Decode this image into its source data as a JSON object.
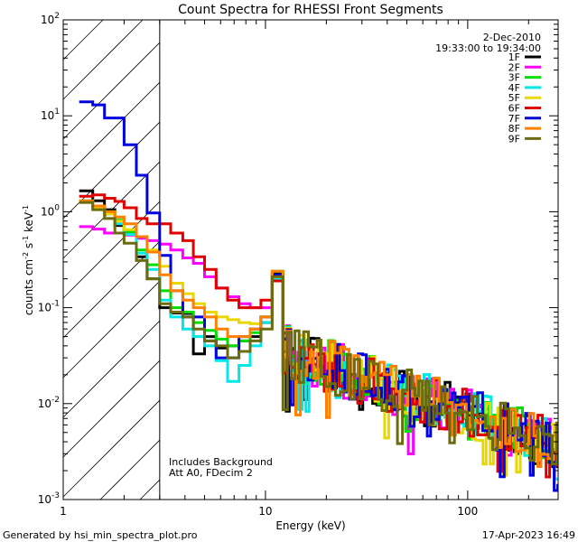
{
  "chart_data": {
    "type": "line",
    "title": "Count Spectra for RHESSI Front Segments",
    "xlabel": "Energy (keV)",
    "ylabel": {
      "base": "counts cm",
      "sup1": "-2",
      "mid1": " s",
      "sup2": "-1",
      "mid2": " keV",
      "sup3": "-1"
    },
    "xscale": "log",
    "yscale": "log",
    "xlim": [
      1,
      280
    ],
    "ylim": [
      0.001,
      100
    ],
    "x_ticks": [
      {
        "value": 1,
        "label": "1"
      },
      {
        "value": 10,
        "label": "10"
      },
      {
        "value": 100,
        "label": "100"
      }
    ],
    "y_ticks": [
      {
        "value": 0.001,
        "base": "10",
        "exp": "-3"
      },
      {
        "value": 0.01,
        "base": "10",
        "exp": "-2"
      },
      {
        "value": 0.1,
        "base": "10",
        "exp": "-1"
      },
      {
        "value": 1,
        "base": "10",
        "exp": "0"
      },
      {
        "value": 10,
        "base": "10",
        "exp": "1"
      },
      {
        "value": 100,
        "base": "10",
        "exp": "2"
      }
    ],
    "hatched_region": {
      "x_from": 1,
      "x_to": 3
    },
    "date_label": "2-Dec-2010",
    "time_label": "19:33:00 to 19:34:00",
    "notes": [
      "Includes Background",
      "Att A0, FDecim 2"
    ],
    "series": [
      {
        "name": "1F",
        "color": "#000000"
      },
      {
        "name": "2F",
        "color": "#ff00ff"
      },
      {
        "name": "3F",
        "color": "#00e000"
      },
      {
        "name": "4F",
        "color": "#00e8e8"
      },
      {
        "name": "5F",
        "color": "#e8d800"
      },
      {
        "name": "6F",
        "color": "#e00000"
      },
      {
        "name": "7F",
        "color": "#0000e0"
      },
      {
        "name": "8F",
        "color": "#ff8000"
      },
      {
        "name": "9F",
        "color": "#6b6b10"
      }
    ],
    "low_energy_bins": [
      1.2,
      1.4,
      1.6,
      1.8,
      2.0,
      2.3,
      2.6,
      3.0,
      3.4,
      3.9,
      4.4,
      5.0,
      5.7,
      6.5,
      7.4,
      8.4,
      9.5,
      10.8,
      12.2
    ],
    "low_energy_values": {
      "1F": [
        1.65,
        1.3,
        1.05,
        0.72,
        0.62,
        0.34,
        0.2,
        0.1,
        0.088,
        0.087,
        0.033,
        0.05,
        0.038,
        0.04,
        0.045,
        0.05,
        0.07,
        0.23,
        0.025
      ],
      "2F": [
        0.7,
        0.66,
        0.6,
        0.6,
        0.57,
        0.53,
        0.5,
        0.46,
        0.4,
        0.33,
        0.29,
        0.21,
        0.16,
        0.13,
        0.11,
        0.1,
        0.1,
        0.2,
        0.04
      ],
      "3F": [
        1.3,
        1.15,
        1.0,
        0.82,
        0.62,
        0.4,
        0.28,
        0.15,
        0.1,
        0.09,
        0.07,
        0.058,
        0.047,
        0.04,
        0.045,
        0.055,
        0.08,
        0.24,
        0.03
      ],
      "4F": [
        1.3,
        1.12,
        0.95,
        0.75,
        0.58,
        0.37,
        0.25,
        0.12,
        0.08,
        0.06,
        0.05,
        0.04,
        0.028,
        0.017,
        0.025,
        0.04,
        0.07,
        0.2,
        0.03
      ],
      "5F": [
        1.25,
        1.1,
        0.95,
        0.8,
        0.65,
        0.55,
        0.4,
        0.27,
        0.18,
        0.14,
        0.11,
        0.09,
        0.08,
        0.075,
        0.07,
        0.068,
        0.08,
        0.21,
        0.035
      ],
      "6F": [
        1.45,
        1.5,
        1.38,
        1.28,
        1.1,
        0.85,
        0.75,
        0.75,
        0.6,
        0.5,
        0.34,
        0.25,
        0.16,
        0.12,
        0.1,
        0.1,
        0.12,
        0.19,
        0.06
      ],
      "7F": [
        14.0,
        13.0,
        9.5,
        9.5,
        5.0,
        2.4,
        0.97,
        0.35,
        0.15,
        0.08,
        0.08,
        0.045,
        0.03,
        0.03,
        0.05,
        0.06,
        0.08,
        0.22,
        0.03
      ],
      "8F": [
        1.3,
        1.15,
        1.0,
        0.88,
        0.75,
        0.55,
        0.38,
        0.22,
        0.15,
        0.12,
        0.1,
        0.08,
        0.06,
        0.05,
        0.05,
        0.06,
        0.08,
        0.24,
        0.035
      ],
      "9F": [
        1.25,
        1.05,
        0.85,
        0.6,
        0.47,
        0.31,
        0.2,
        0.11,
        0.09,
        0.08,
        0.06,
        0.045,
        0.04,
        0.03,
        0.035,
        0.045,
        0.06,
        0.21,
        0.025
      ]
    },
    "high_energy_trend": {
      "from_keV": 12.5,
      "to_keV": 280,
      "start_value": 0.035,
      "end_value": 0.0035,
      "note": "noisy tail, values scatter roughly 0.002-0.03 counts cm^-2 s^-1 keV^-1"
    }
  },
  "footer": {
    "left": "Generated by hsi_min_spectra_plot.pro",
    "right": "17-Apr-2023 16:49"
  }
}
